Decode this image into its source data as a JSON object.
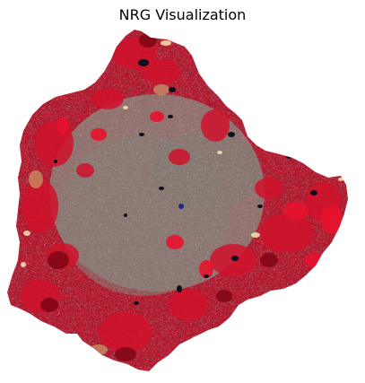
{
  "figure": {
    "title": "NRG Visualization"
  },
  "image": {
    "description_name": "nrg-false-color-region",
    "colors": {
      "vegetation_red": "#c8102a",
      "dense_red": "#8e0a1a",
      "urban_gray": "#8a7f78",
      "water_dark": "#0b0f1e",
      "bright_sand": "#f2e7b4",
      "tan": "#c99b6b"
    }
  }
}
